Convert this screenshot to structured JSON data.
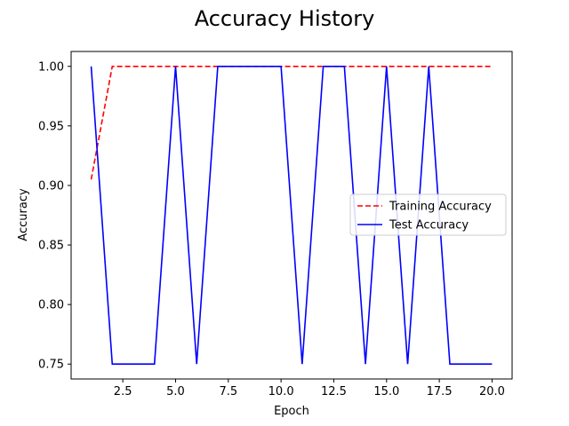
{
  "chart_data": {
    "type": "line",
    "title": "Accuracy History",
    "xlabel": "Epoch",
    "ylabel": "Accuracy",
    "xlim": [
      0.05,
      20.95
    ],
    "ylim": [
      0.7375,
      1.0125
    ],
    "xticks": [
      2.5,
      5.0,
      7.5,
      10.0,
      12.5,
      15.0,
      17.5,
      20.0
    ],
    "xtick_labels": [
      "2.5",
      "5.0",
      "7.5",
      "10.0",
      "12.5",
      "15.0",
      "17.5",
      "20.0"
    ],
    "yticks": [
      0.75,
      0.8,
      0.85,
      0.9,
      0.95,
      1.0
    ],
    "ytick_labels": [
      "0.75",
      "0.80",
      "0.85",
      "0.90",
      "0.95",
      "1.00"
    ],
    "grid": false,
    "legend_position": "center-right",
    "x": [
      1,
      2,
      3,
      4,
      5,
      6,
      7,
      8,
      9,
      10,
      11,
      12,
      13,
      14,
      15,
      16,
      17,
      18,
      19,
      20
    ],
    "series": [
      {
        "name": "Training Accuracy",
        "color": "#ff0000",
        "style": "dashed",
        "values": [
          0.905,
          1.0,
          1.0,
          1.0,
          1.0,
          1.0,
          1.0,
          1.0,
          1.0,
          1.0,
          1.0,
          1.0,
          1.0,
          1.0,
          1.0,
          1.0,
          1.0,
          1.0,
          1.0,
          1.0
        ]
      },
      {
        "name": "Test Accuracy",
        "color": "#0000ff",
        "style": "solid",
        "values": [
          1.0,
          0.75,
          0.75,
          0.75,
          1.0,
          0.75,
          1.0,
          1.0,
          1.0,
          1.0,
          0.75,
          1.0,
          1.0,
          0.75,
          1.0,
          0.75,
          1.0,
          0.75,
          0.75,
          0.75
        ]
      }
    ]
  }
}
